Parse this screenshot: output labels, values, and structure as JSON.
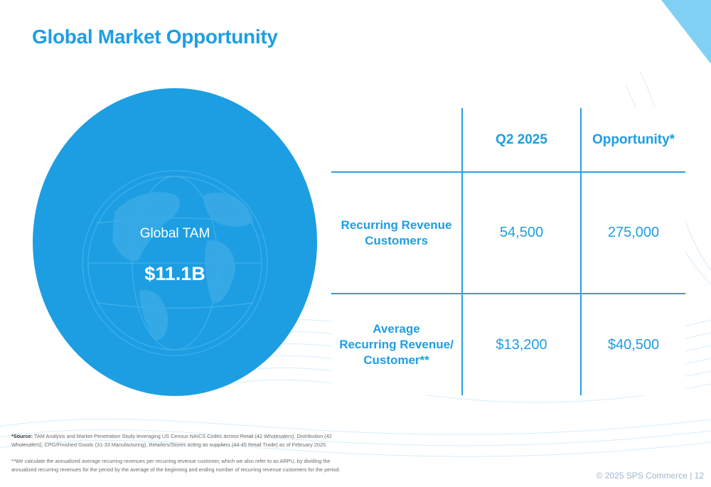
{
  "title": "Global Market Opportunity",
  "tam": {
    "label": "Global TAM",
    "value": "$11.1B"
  },
  "table": {
    "headers": [
      "",
      "Q2 2025",
      "Opportunity*"
    ],
    "rows": [
      {
        "label_lines": [
          "Recurring Revenue",
          "Customers"
        ],
        "q2": "54,500",
        "opportunity": "275,000"
      },
      {
        "label_lines": [
          "Average",
          "Recurring Revenue/",
          "Customer**"
        ],
        "q2": "$13,200",
        "opportunity": "$40,500"
      }
    ]
  },
  "footnotes": {
    "source_prefix": "*Source:",
    "source_text": " TAM Analysis and Market Penetration Study leveraging US Census NAICS Codes across Retail (42 Wholesalers), Distribution (42 Wholesalers), CPG/Finished Goods (31-33 Manufacturing), Retailers/Stores acting as suppliers (44-45 Retail Trade) as of February 2025.",
    "arpu_text": "**We calculate the annualized average recurring revenues per recurring revenue customer, which we also refer to as ARPU, by dividing the annualized recurring revenues for the period by the average of the beginning and ending number of recurring revenue customers for the period."
  },
  "footer": {
    "copyright": "© 2025 SPS Commerce | 12"
  },
  "colors": {
    "accent": "#1d9ee3",
    "corner": "#7fd0f2",
    "text_gray": "#6a6a6a"
  }
}
